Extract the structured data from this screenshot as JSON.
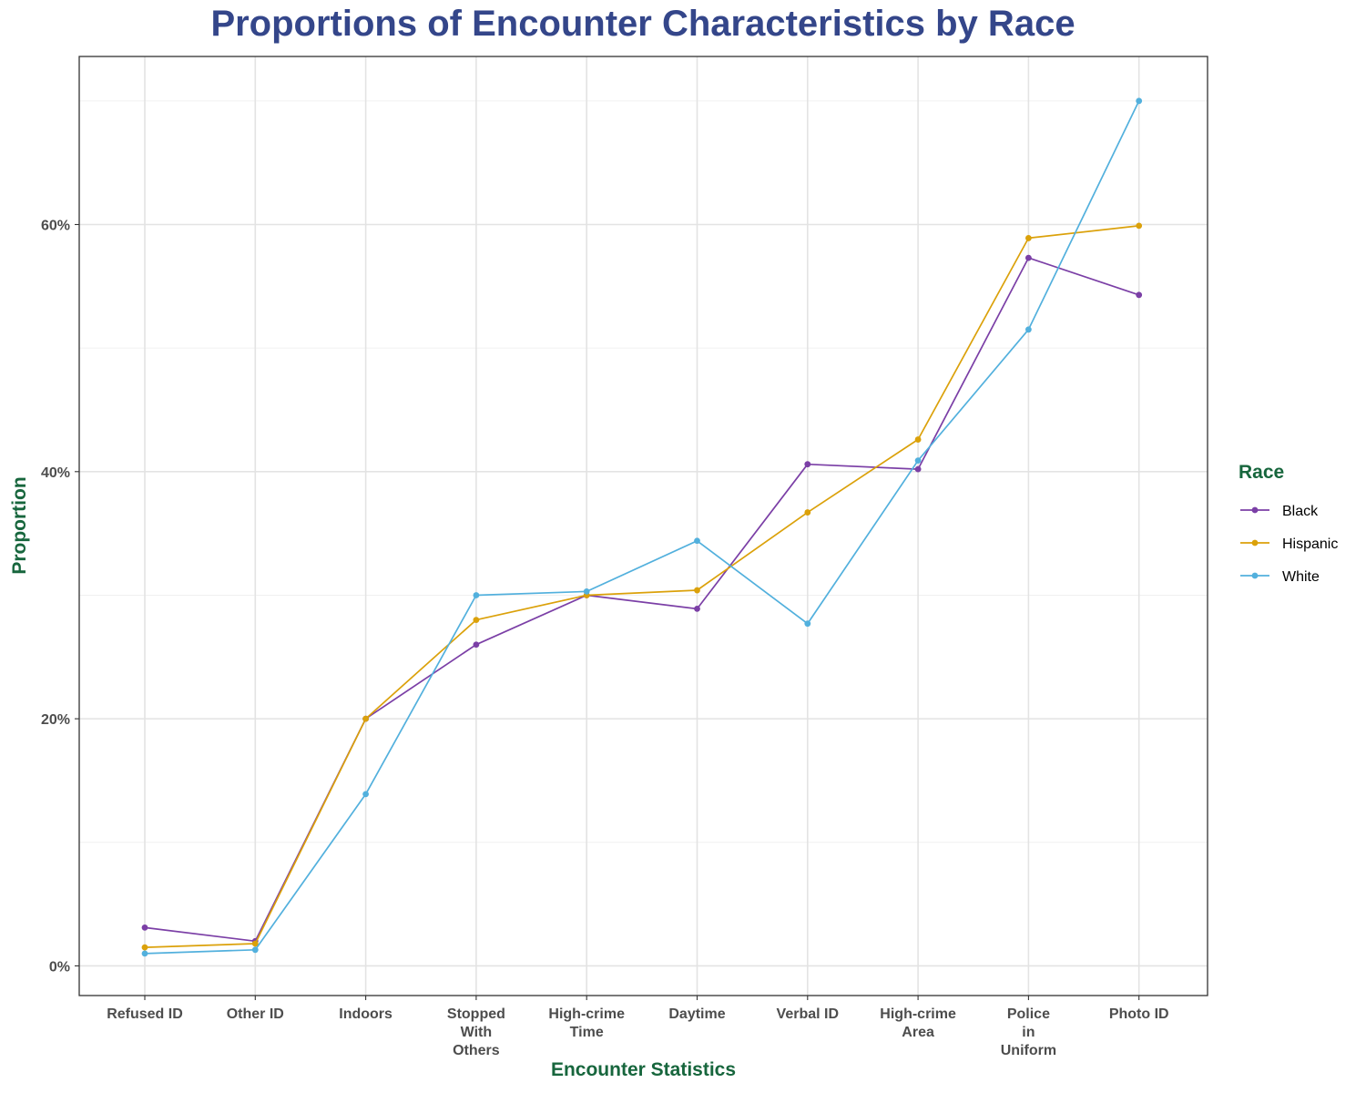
{
  "chart_data": {
    "type": "line",
    "title": "Proportions of Encounter Characteristics by Race",
    "xlabel": "Encounter Statistics",
    "ylabel": "Proportion",
    "categories": [
      [
        "Refused ID"
      ],
      [
        "Other ID"
      ],
      [
        "Indoors"
      ],
      [
        "Stopped",
        "With",
        "Others"
      ],
      [
        "High-crime",
        "Time"
      ],
      [
        "Daytime"
      ],
      [
        "Verbal ID"
      ],
      [
        "High-crime",
        "Area"
      ],
      [
        "Police",
        "in",
        "Uniform"
      ],
      [
        "Photo ID"
      ]
    ],
    "y_ticks": [
      0,
      20,
      40,
      60
    ],
    "y_tick_labels": [
      "0%",
      "20%",
      "40%",
      "60%"
    ],
    "ylim": [
      -2.4,
      73.6
    ],
    "legend_title": "Race",
    "legend_position": "right",
    "grid": true,
    "series": [
      {
        "name": "Black",
        "color": "#7b3fa6",
        "values": [
          3.1,
          2.0,
          20.0,
          26.0,
          30.0,
          28.9,
          40.6,
          40.2,
          57.3,
          54.3
        ]
      },
      {
        "name": "Hispanic",
        "color": "#dba10a",
        "values": [
          1.5,
          1.8,
          20.0,
          28.0,
          30.0,
          30.4,
          36.7,
          42.6,
          58.9,
          59.9
        ]
      },
      {
        "name": "White",
        "color": "#52b0dd",
        "values": [
          1.0,
          1.3,
          13.9,
          30.0,
          30.3,
          34.4,
          27.7,
          40.9,
          51.5,
          70.0
        ]
      }
    ]
  }
}
